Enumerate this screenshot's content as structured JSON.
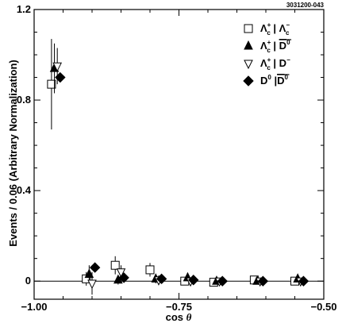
{
  "chart_data": {
    "type": "scatter",
    "reference": "3031200-043",
    "xlabel_text": "cos ",
    "xlabel_symbol": "θ",
    "ylabel": "Events / 0.06 (Arbitrary Normalization)",
    "xlim": [
      -1.0,
      -0.5
    ],
    "ylim": [
      -0.08,
      1.2
    ],
    "x_ticks": [
      -1.0,
      -0.75,
      -0.5
    ],
    "x_tick_labels": [
      "−1.00",
      "−0.75",
      "−0.50"
    ],
    "y_ticks": [
      0,
      0.4,
      0.8,
      1.2
    ],
    "y_tick_labels": [
      "0",
      "0.4",
      "0.8",
      "1.2"
    ],
    "zero_line": true,
    "legend_position": "top-right",
    "series": [
      {
        "marker": "open-square",
        "legend": {
          "main_1": "Λ",
          "sup_1": "+",
          "sub_1": "c",
          "sep": " | ",
          "main_2": "Λ",
          "sup_2": "−",
          "sub_2": "c"
        },
        "points": [
          {
            "x": -0.97,
            "y": 0.87,
            "err": 0.2
          },
          {
            "x": -0.91,
            "y": 0.01,
            "err": 0.03
          },
          {
            "x": -0.86,
            "y": 0.07,
            "err": 0.04
          },
          {
            "x": -0.8,
            "y": 0.05,
            "err": 0.03
          },
          {
            "x": -0.74,
            "y": 0.0,
            "err": 0.01
          },
          {
            "x": -0.69,
            "y": -0.005,
            "err": 0.01
          },
          {
            "x": -0.62,
            "y": 0.005,
            "err": 0.01
          },
          {
            "x": -0.55,
            "y": 0.0,
            "err": 0.01
          }
        ]
      },
      {
        "marker": "filled-triangle-up",
        "legend": {
          "main_1": "Λ",
          "sup_1": "+",
          "sub_1": "c",
          "sep": " | ",
          "main_2": "D",
          "sup_2": "0",
          "overline_2": true
        },
        "points": [
          {
            "x": -0.965,
            "y": 0.94,
            "err": 0.11
          },
          {
            "x": -0.905,
            "y": 0.03,
            "err": 0.04
          },
          {
            "x": -0.855,
            "y": 0.005,
            "err": 0.02
          },
          {
            "x": -0.79,
            "y": 0.01,
            "err": 0.02
          },
          {
            "x": -0.735,
            "y": 0.015,
            "err": 0.01
          },
          {
            "x": -0.685,
            "y": 0.0,
            "err": 0.01
          },
          {
            "x": -0.615,
            "y": 0.0,
            "err": 0.01
          },
          {
            "x": -0.545,
            "y": 0.01,
            "err": 0.01
          }
        ]
      },
      {
        "marker": "open-triangle-down",
        "legend": {
          "main_1": "Λ",
          "sup_1": "+",
          "sub_1": "c",
          "sep": " | ",
          "main_2": "D",
          "sup_2": "−"
        },
        "points": [
          {
            "x": -0.96,
            "y": 0.95,
            "err": 0.08
          },
          {
            "x": -0.9,
            "y": -0.01,
            "err": 0.05
          },
          {
            "x": -0.85,
            "y": 0.04,
            "err": 0.03
          },
          {
            "x": -0.785,
            "y": 0.005,
            "err": 0.02
          },
          {
            "x": -0.73,
            "y": 0.0,
            "err": 0.01
          },
          {
            "x": -0.68,
            "y": 0.0,
            "err": 0.01
          },
          {
            "x": -0.61,
            "y": 0.0,
            "err": 0.01
          },
          {
            "x": -0.54,
            "y": 0.0,
            "err": 0.01
          }
        ]
      },
      {
        "marker": "filled-diamond",
        "legend": {
          "main_1": "D",
          "sup_1": "0",
          "sep": " |",
          "main_2": "D",
          "sup_2": "0",
          "overline_2": true
        },
        "points": [
          {
            "x": -0.955,
            "y": 0.9,
            "err": 0.02
          },
          {
            "x": -0.895,
            "y": 0.06,
            "err": 0.01
          },
          {
            "x": -0.845,
            "y": 0.015,
            "err": 0.01
          },
          {
            "x": -0.78,
            "y": 0.01,
            "err": 0.01
          },
          {
            "x": -0.725,
            "y": 0.005,
            "err": 0.01
          },
          {
            "x": -0.675,
            "y": 0.0,
            "err": 0.005
          },
          {
            "x": -0.605,
            "y": 0.0,
            "err": 0.005
          },
          {
            "x": -0.535,
            "y": 0.0,
            "err": 0.005
          }
        ]
      }
    ]
  }
}
